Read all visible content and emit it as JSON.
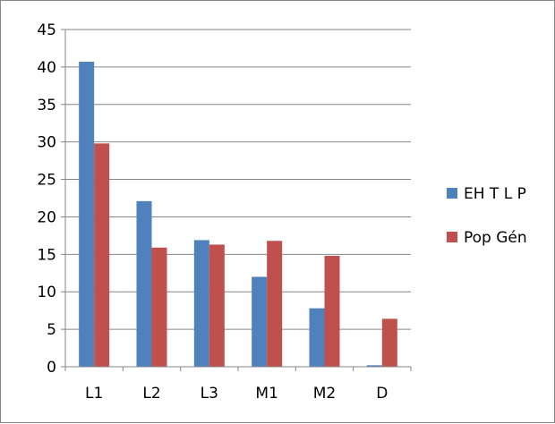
{
  "chart_data": {
    "type": "bar",
    "categories": [
      "L1",
      "L2",
      "L3",
      "M1",
      "M2",
      "D"
    ],
    "series": [
      {
        "name": "EH T L P",
        "color": "#4F81BD",
        "values": [
          40.7,
          22.1,
          16.9,
          12.0,
          7.8,
          0.2
        ]
      },
      {
        "name": "Pop Gén",
        "color": "#C0504D",
        "values": [
          29.8,
          15.9,
          16.3,
          16.8,
          14.8,
          6.4
        ]
      }
    ],
    "y_ticks": [
      "0",
      "5",
      "10",
      "15",
      "20",
      "25",
      "30",
      "35",
      "40",
      "45"
    ],
    "ylim": [
      0,
      45
    ],
    "grid": true,
    "legend_position": "right",
    "title": "",
    "xlabel": "",
    "ylabel": ""
  }
}
